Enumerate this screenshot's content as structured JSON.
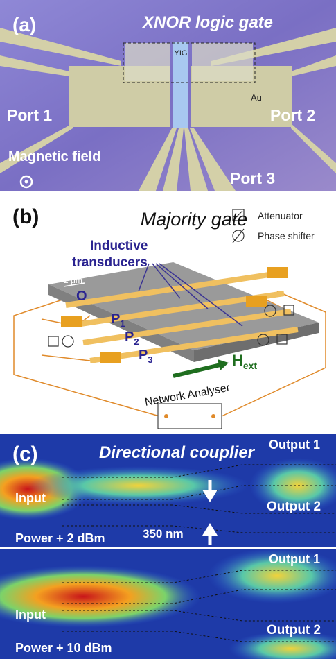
{
  "panel_a": {
    "label": "(a)",
    "title": "XNOR logic gate",
    "material_1": "YIG",
    "material_2": "Au",
    "port_1": "Port 1",
    "port_2": "Port 2",
    "port_3": "Port 3",
    "field": "Magnetic field"
  },
  "panel_b": {
    "label": "(b)",
    "title": "Majority gate",
    "transducers": [
      "Inductive",
      "transducers"
    ],
    "legend": [
      "Attenuator",
      "Phase shifter"
    ],
    "scale": "2 μm",
    "output": "O",
    "inputs": [
      {
        "letter": "P",
        "sub": "1"
      },
      {
        "letter": "P",
        "sub": "2"
      },
      {
        "letter": "P",
        "sub": "3"
      }
    ],
    "field": {
      "letter": "H",
      "sub": "ext"
    },
    "analyser": "Network Analyser"
  },
  "panel_c": {
    "label": "(c)",
    "title": "Directional couplier",
    "gap": "350 nm",
    "maps": [
      {
        "output_1": "Output 1",
        "input": "Input",
        "output_2": "Output 2",
        "power": "Power + 2 dBm"
      },
      {
        "output_1": "Output 1",
        "input": "Input",
        "output_2": "Output 2",
        "power": "Power + 10 dBm"
      }
    ]
  }
}
